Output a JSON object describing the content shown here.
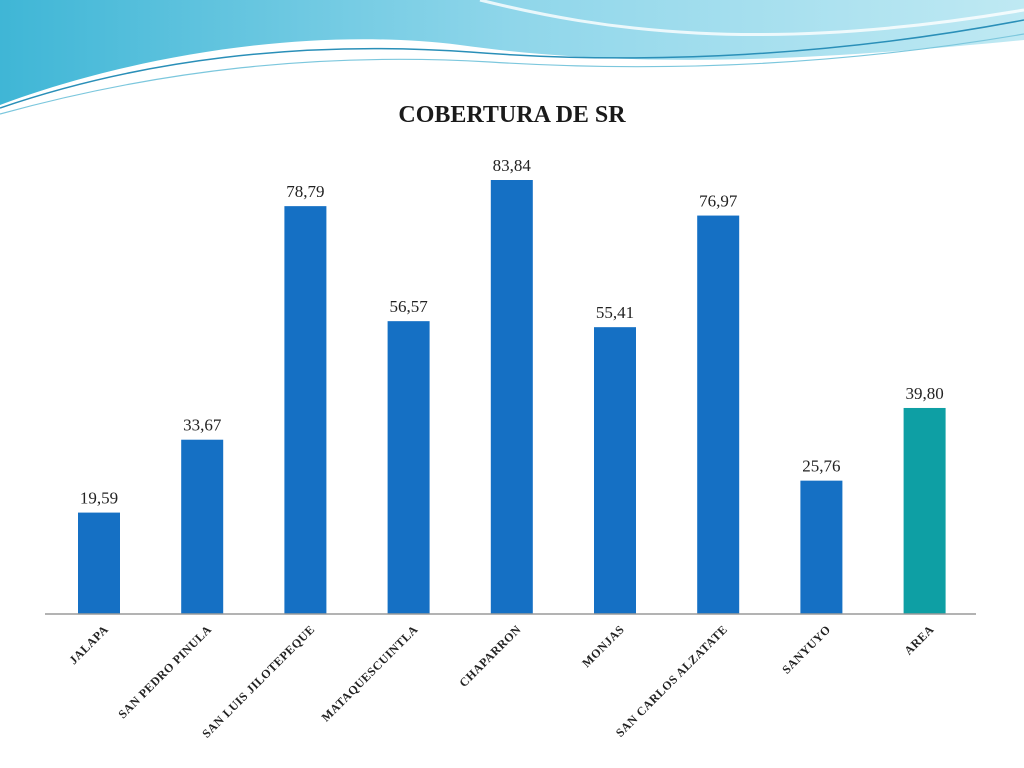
{
  "chart_data": {
    "type": "bar",
    "title": "COBERTURA DE SR",
    "xlabel": "",
    "ylabel": "",
    "ylim": [
      0,
      90
    ],
    "grid": false,
    "legend": "none",
    "categories": [
      "JALAPA",
      "SAN PEDRO PINULA",
      "SAN LUIS JILOTEPEQUE",
      "MATAQUESCUINTLA",
      "CHAPARRON",
      "MONJAS",
      "SAN CARLOS ALZATATE",
      "SANYUYO",
      "AREA"
    ],
    "values": [
      19.59,
      33.67,
      78.79,
      56.57,
      83.84,
      55.41,
      76.97,
      25.76,
      39.8
    ],
    "data_labels": [
      "19,59",
      "33,67",
      "78,79",
      "56,57",
      "83,84",
      "55,41",
      "76,97",
      "25,76",
      "39,80"
    ],
    "colors": [
      "#1570C4",
      "#1570C4",
      "#1570C4",
      "#1570C4",
      "#1570C4",
      "#1570C4",
      "#1570C4",
      "#1570C4",
      "#0E9FA4"
    ]
  }
}
